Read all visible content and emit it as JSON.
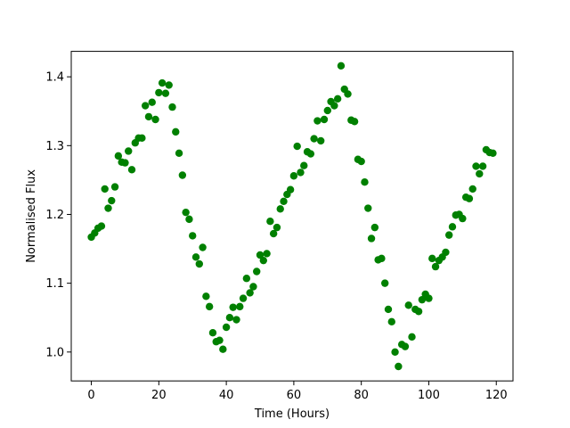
{
  "chart_data": {
    "type": "scatter",
    "title": "",
    "xlabel": "Time (Hours)",
    "ylabel": "Normalised Flux",
    "xlim": [
      -5.95,
      124.95
    ],
    "ylim": [
      0.958,
      1.437
    ],
    "xticks": [
      0,
      20,
      40,
      60,
      80,
      100,
      120
    ],
    "xtick_labels": [
      "0",
      "20",
      "40",
      "60",
      "80",
      "100",
      "120"
    ],
    "yticks": [
      1.0,
      1.1,
      1.2,
      1.3,
      1.4
    ],
    "ytick_labels": [
      "1.0",
      "1.1",
      "1.2",
      "1.3",
      "1.4"
    ],
    "grid": false,
    "marker_color": "#008000",
    "series": [
      {
        "x": [
          0,
          1,
          2,
          3,
          4,
          5,
          6,
          7,
          8,
          9,
          10,
          11,
          12,
          13,
          14,
          15,
          16,
          17,
          18,
          19,
          20,
          21,
          22,
          23,
          24,
          25,
          26,
          27,
          28,
          29,
          30,
          31,
          32,
          33,
          34,
          35,
          36,
          37,
          38,
          39,
          40,
          41,
          42,
          43,
          44,
          45,
          46,
          47,
          48,
          49,
          50,
          51,
          52,
          53,
          54,
          55,
          56,
          57,
          58,
          59,
          60,
          61,
          62,
          63,
          64,
          65,
          66,
          67,
          68,
          69,
          70,
          71,
          72,
          73,
          74,
          75,
          76,
          77,
          78,
          79,
          80,
          81,
          82,
          83,
          84,
          85,
          86,
          87,
          88,
          89,
          90,
          91,
          92,
          93,
          94,
          95,
          96,
          97,
          98,
          99,
          100,
          101,
          102,
          103,
          104,
          105,
          106,
          107,
          108,
          109,
          110,
          111,
          112,
          113,
          114,
          115,
          116,
          117,
          118,
          119
        ],
        "y": [
          1.167,
          1.173,
          1.18,
          1.183,
          1.237,
          1.209,
          1.22,
          1.24,
          1.285,
          1.276,
          1.275,
          1.292,
          1.265,
          1.304,
          1.311,
          1.311,
          1.358,
          1.342,
          1.363,
          1.338,
          1.377,
          1.391,
          1.376,
          1.388,
          1.356,
          1.32,
          1.289,
          1.257,
          1.203,
          1.193,
          1.169,
          1.138,
          1.128,
          1.152,
          1.081,
          1.066,
          1.028,
          1.015,
          1.017,
          1.004,
          1.036,
          1.05,
          1.065,
          1.047,
          1.066,
          1.078,
          1.107,
          1.086,
          1.095,
          1.117,
          1.141,
          1.133,
          1.143,
          1.19,
          1.172,
          1.181,
          1.208,
          1.219,
          1.229,
          1.236,
          1.256,
          1.299,
          1.261,
          1.271,
          1.291,
          1.288,
          1.31,
          1.336,
          1.307,
          1.338,
          1.351,
          1.364,
          1.358,
          1.368,
          1.416,
          1.382,
          1.375,
          1.337,
          1.335,
          1.28,
          1.277,
          1.247,
          1.209,
          1.165,
          1.181,
          1.134,
          1.136,
          1.1,
          1.062,
          1.044,
          1.0,
          0.979,
          1.011,
          1.008,
          1.068,
          1.022,
          1.062,
          1.059,
          1.076,
          1.084,
          1.078,
          1.136,
          1.124,
          1.133,
          1.138,
          1.145,
          1.17,
          1.182,
          1.199,
          1.2,
          1.194,
          1.225,
          1.223,
          1.237,
          1.27,
          1.259,
          1.27,
          1.294,
          1.29,
          1.289
        ]
      }
    ]
  }
}
